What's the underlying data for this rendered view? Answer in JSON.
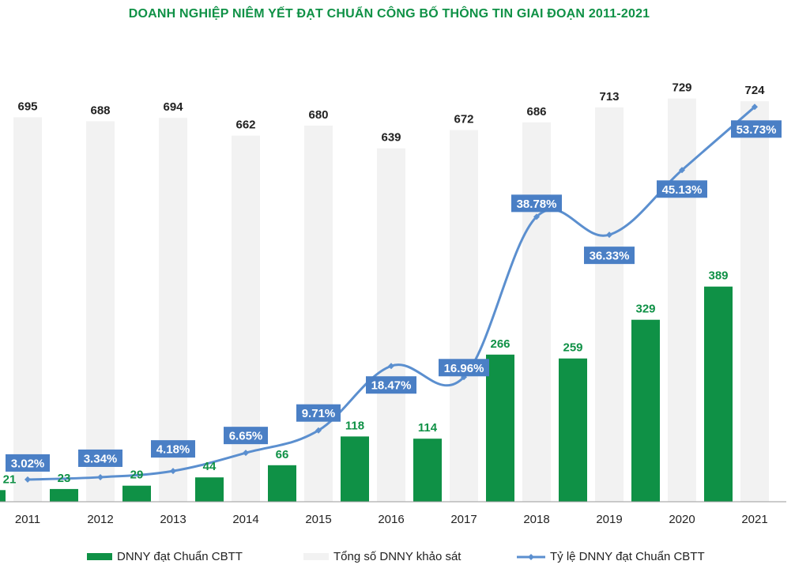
{
  "title": "DOANH NGHIỆP NIÊM YẾT ĐẠT CHUẨN CÔNG BỐ THÔNG TIN GIAI ĐOẠN 2011-2021",
  "colors": {
    "compliant_bar": "#0f9146",
    "total_bar": "#f2f2f2",
    "ratio_line": "#5b8fcf",
    "ratio_label_bg": "#4a7fc5",
    "title": "#0f9146"
  },
  "chart_data": {
    "type": "bar",
    "categories": [
      "2011",
      "2012",
      "2013",
      "2014",
      "2015",
      "2016",
      "2017",
      "2018",
      "2019",
      "2020",
      "2021"
    ],
    "series": [
      {
        "name": "DNNY đạt Chuẩn CBTT",
        "type": "bar",
        "values": [
          21,
          23,
          29,
          44,
          66,
          118,
          114,
          266,
          259,
          329,
          389
        ]
      },
      {
        "name": "Tổng số DNNY khảo sát",
        "type": "bar",
        "values": [
          695,
          688,
          694,
          662,
          680,
          639,
          672,
          686,
          713,
          729,
          724
        ]
      },
      {
        "name": "Tỷ lệ DNNY đạt Chuẩn CBTT",
        "type": "line",
        "values": [
          3.02,
          3.34,
          4.18,
          6.65,
          9.71,
          18.47,
          16.96,
          38.78,
          36.33,
          45.13,
          53.73
        ],
        "labels": [
          "3.02%",
          "3.34%",
          "4.18%",
          "6.65%",
          "9.71%",
          "18.47%",
          "16.96%",
          "38.78%",
          "36.33%",
          "45.13%",
          "53.73%"
        ]
      }
    ],
    "ylim": [
      0,
      730
    ],
    "ratio_ylim": [
      0,
      60
    ],
    "grid": false,
    "legend_position": "bottom"
  },
  "legend": {
    "compliant": "DNNY đạt Chuẩn CBTT",
    "total": "Tổng số DNNY khảo sát",
    "ratio": "Tỷ lệ DNNY đạt Chuẩn CBTT"
  }
}
